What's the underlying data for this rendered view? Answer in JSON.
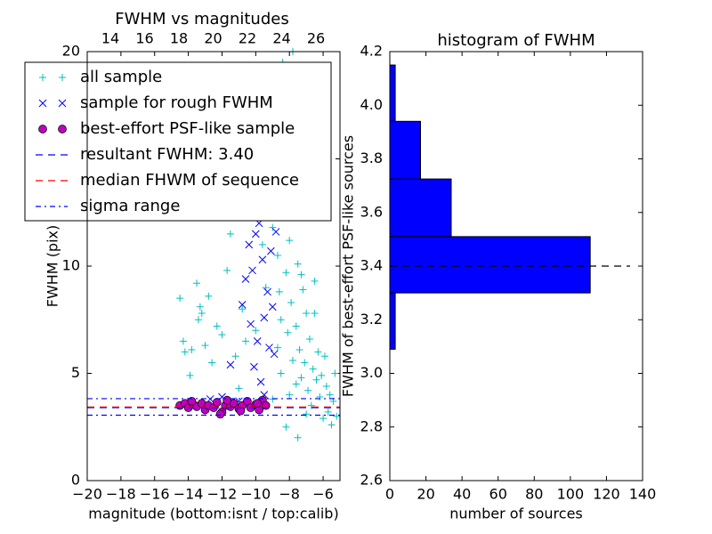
{
  "chart_data": [
    {
      "type": "scatter",
      "title": "FWHM vs magnitudes",
      "xlabel": "magnitude (bottom:isnt / top:calib)",
      "ylabel": "FWHM (pix)",
      "xlim": [
        -20,
        -5
      ],
      "xticks": [
        {
          "value": -20,
          "label": "−20"
        },
        {
          "value": -18,
          "label": "−18"
        },
        {
          "value": -16,
          "label": "−16"
        },
        {
          "value": -14,
          "label": "−14"
        },
        {
          "value": -12,
          "label": "−12"
        },
        {
          "value": -10,
          "label": "−10"
        },
        {
          "value": -8,
          "label": "−8"
        },
        {
          "value": -6,
          "label": "−6"
        }
      ],
      "x2lim": [
        12.65,
        27.4
      ],
      "x2ticks": [
        14,
        16,
        18,
        20,
        22,
        24,
        26
      ],
      "ylim": [
        0,
        20
      ],
      "yticks": [
        0,
        5,
        10,
        15,
        20
      ],
      "legend": "upper left",
      "series": [
        {
          "name": "all sample",
          "color": "#00bfbf",
          "marker": "+",
          "x": [
            -14.5,
            -14.3,
            -14.2,
            -13.9,
            -13.8,
            -13.5,
            -13.4,
            -13.3,
            -13.2,
            -13.0,
            -12.8,
            -12.6,
            -12.3,
            -12.0,
            -11.7,
            -11.5,
            -11.2,
            -11.0,
            -10.8,
            -10.6,
            -10.3,
            -10.0,
            -9.8,
            -9.6,
            -9.4,
            -9.2,
            -9.0,
            -8.8,
            -8.7,
            -8.6,
            -8.5,
            -8.4,
            -8.3,
            -8.2,
            -8.1,
            -8.0,
            -7.9,
            -7.8,
            -7.8,
            -7.7,
            -7.6,
            -7.5,
            -7.4,
            -7.3,
            -7.2,
            -7.1,
            -7.0,
            -6.9,
            -6.8,
            -6.7,
            -6.6,
            -6.5,
            -6.4,
            -6.3,
            -6.2,
            -6.1,
            -6.0,
            -5.9,
            -5.8,
            -5.7,
            -5.6,
            -5.5,
            -5.4,
            -5.3,
            -5.2,
            -7.5,
            -8.2,
            -7.0,
            -8.5,
            -8.0,
            -7.6,
            -9.0,
            -6.5,
            -7.3,
            -8.7
          ],
          "values": [
            8.5,
            6.5,
            6.0,
            4.9,
            6.1,
            9.2,
            7.5,
            8.1,
            7.8,
            6.3,
            8.6,
            5.5,
            7.2,
            6.8,
            9.8,
            11.5,
            5.8,
            4.3,
            8.0,
            6.5,
            12.8,
            7.0,
            14.2,
            11.0,
            9.0,
            13.5,
            11.8,
            16.0,
            10.5,
            8.8,
            7.5,
            19.5,
            12.5,
            9.7,
            6.9,
            11.2,
            8.3,
            20.0,
            5.6,
            13.4,
            7.2,
            10.1,
            6.1,
            4.8,
            8.9,
            5.5,
            7.8,
            4.2,
            6.6,
            3.5,
            5.2,
            9.3,
            4.7,
            6.0,
            3.9,
            4.9,
            2.9,
            5.8,
            4.4,
            3.2,
            4.0,
            2.6,
            3.7,
            5.0,
            3.0,
            2.0,
            2.5,
            3.1,
            5.0,
            4.0,
            4.5,
            3.8,
            7.8,
            9.6,
            6.2
          ]
        },
        {
          "name": "sample for rough FWHM",
          "color": "#0000ff",
          "marker": "x",
          "x": [
            -12.7,
            -12.0,
            -11.5,
            -11.0,
            -10.8,
            -10.6,
            -10.4,
            -10.3,
            -10.2,
            -10.0,
            -9.9,
            -9.8,
            -9.7,
            -9.6,
            -9.5,
            -9.4,
            -9.3,
            -9.2,
            -9.1,
            -9.0,
            -8.9,
            -8.8,
            -9.5,
            -10.1,
            -9.7,
            -9.9
          ],
          "values": [
            3.8,
            3.9,
            5.4,
            3.7,
            8.2,
            9.4,
            11.0,
            7.3,
            9.8,
            11.5,
            6.5,
            12.0,
            4.6,
            10.3,
            7.6,
            12.5,
            8.8,
            6.2,
            10.7,
            8.1,
            5.9,
            11.6,
            4.0,
            5.3,
            14.3,
            13.1
          ]
        },
        {
          "name": "best-effort PSF-like sample",
          "color": "#bf00bf",
          "marker": "o",
          "x": [
            -14.5,
            -14.2,
            -14.0,
            -13.7,
            -13.5,
            -13.2,
            -13.0,
            -12.8,
            -12.5,
            -12.3,
            -12.0,
            -11.8,
            -11.5,
            -11.3,
            -11.0,
            -10.8,
            -10.5,
            -10.3,
            -10.0,
            -9.8,
            -9.6,
            -9.4,
            -12.1,
            -11.7,
            -13.8,
            -10.9,
            -9.9
          ],
          "values": [
            3.5,
            3.6,
            3.4,
            3.55,
            3.45,
            3.6,
            3.3,
            3.5,
            3.4,
            3.65,
            3.2,
            3.5,
            3.45,
            3.6,
            3.35,
            3.5,
            3.7,
            3.4,
            3.55,
            3.3,
            3.75,
            3.5,
            3.1,
            3.75,
            3.7,
            3.25,
            3.6
          ]
        },
        {
          "name": "resultant FWHM: 3.40",
          "type": "hline",
          "color": "#0000ff",
          "style": "dashed",
          "values": [
            3.4
          ]
        },
        {
          "name": "median FHWM of sequence",
          "type": "hline",
          "color": "#ff0000",
          "style": "dashed",
          "values": [
            3.43
          ]
        },
        {
          "name": "sigma range",
          "type": "hline",
          "color": "#0000ff",
          "style": "dashdot",
          "values": [
            3.05,
            3.82
          ]
        }
      ]
    },
    {
      "type": "histogram",
      "orientation": "horizontal",
      "title": "histogram of FWHM",
      "xlabel": "number of sources",
      "ylabel": "FWHM of best-effort PSF-like sources",
      "bins": [
        3.09,
        3.3,
        3.51,
        3.725,
        3.94,
        4.15
      ],
      "values": [
        3,
        111,
        34,
        17,
        3
      ],
      "color": "#0000ff",
      "xlim": [
        0,
        140
      ],
      "xticks": [
        0,
        20,
        40,
        60,
        80,
        100,
        120,
        140
      ],
      "ylim": [
        2.6,
        4.2
      ],
      "yticks": [
        2.6,
        2.8,
        {
          "value": 3.0,
          "label": "3.0"
        },
        3.2,
        3.4,
        3.6,
        3.8,
        {
          "value": 4.0,
          "label": "4.0"
        },
        4.2
      ],
      "hline": 3.4
    }
  ]
}
